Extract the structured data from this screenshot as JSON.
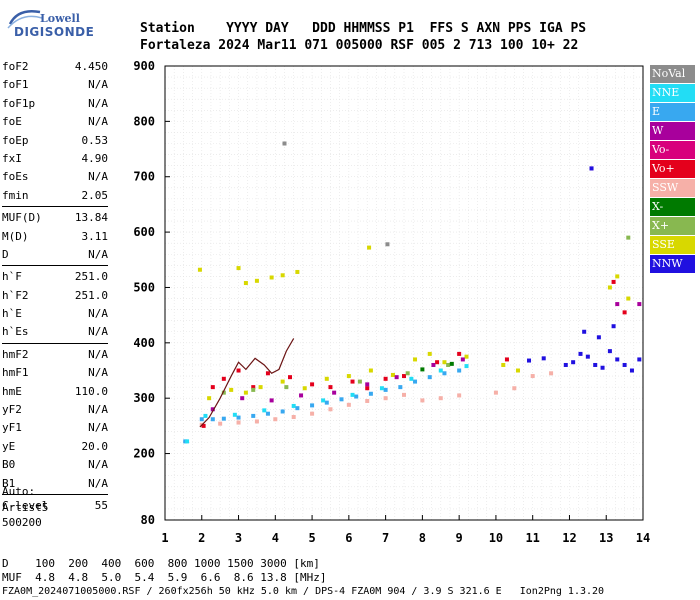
{
  "logo": {
    "line1": "Lowell",
    "line2": "DIGISONDE"
  },
  "header": {
    "line1": "Station    YYYY DAY   DDD HHMMSS P1  FFS S AXN PPS IGA PS",
    "line2": "Fortaleza 2024 Mar11 071 005000 RSF 005 2 713 100 10+ 22"
  },
  "params": [
    [
      {
        "k": "foF2",
        "v": "4.450"
      },
      {
        "k": "foF1",
        "v": "N/A"
      },
      {
        "k": "foF1p",
        "v": "N/A"
      },
      {
        "k": "foE",
        "v": "N/A"
      },
      {
        "k": "foEp",
        "v": "0.53"
      },
      {
        "k": "fxI",
        "v": "4.90"
      },
      {
        "k": "foEs",
        "v": "N/A"
      },
      {
        "k": "fmin",
        "v": "2.05"
      }
    ],
    [
      {
        "k": "MUF(D)",
        "v": "13.84"
      },
      {
        "k": "M(D)",
        "v": "3.11"
      },
      {
        "k": "D",
        "v": "N/A"
      }
    ],
    [
      {
        "k": "h`F",
        "v": "251.0"
      },
      {
        "k": "h`F2",
        "v": "251.0"
      },
      {
        "k": "h`E",
        "v": "N/A"
      },
      {
        "k": "h`Es",
        "v": "N/A"
      }
    ],
    [
      {
        "k": "hmF2",
        "v": "N/A"
      },
      {
        "k": "hmF1",
        "v": "N/A"
      },
      {
        "k": "hmE",
        "v": "110.0"
      },
      {
        "k": "yF2",
        "v": "N/A"
      },
      {
        "k": "yF1",
        "v": "N/A"
      },
      {
        "k": "yE",
        "v": "20.0"
      },
      {
        "k": "B0",
        "v": "N/A"
      },
      {
        "k": "B1",
        "v": "N/A"
      }
    ],
    [
      {
        "k": "C-level",
        "v": "55"
      }
    ]
  ],
  "auto": {
    "l1": "Auto:",
    "l2": "Artist5",
    "l3": "500200"
  },
  "footer": {
    "l1": "D    100  200  400  600  800 1000 1500 3000 [km]",
    "l2": "MUF  4.8  4.8  5.0  5.4  5.9  6.6  8.6 13.8 [MHz]",
    "l3": "FZA0M_2024071005000.RSF / 260fx256h 50 kHz 5.0 km / DPS-4 FZA0M 904 / 3.9 S 321.6 E   Ion2Png 1.3.20"
  },
  "legend": [
    {
      "label": "NoVal",
      "bg": "#8c8c8c",
      "fg": "#ffffff"
    },
    {
      "label": "NNE",
      "bg": "#22ddf5",
      "fg": "#ffffff"
    },
    {
      "label": "E",
      "bg": "#38a8f0",
      "fg": "#ffffff"
    },
    {
      "label": "W",
      "bg": "#a8009c",
      "fg": "#ffffff"
    },
    {
      "label": "Vo-",
      "bg": "#d8007c",
      "fg": "#ffffff"
    },
    {
      "label": "Vo+",
      "bg": "#e4001c",
      "fg": "#ffffff"
    },
    {
      "label": "SSW",
      "bg": "#f6b0a8",
      "fg": "#ffffff"
    },
    {
      "label": "X-",
      "bg": "#007a00",
      "fg": "#ffffff"
    },
    {
      "label": "X+",
      "bg": "#88b850",
      "fg": "#ffffff"
    },
    {
      "label": "SSE",
      "bg": "#d8d800",
      "fg": "#ffffff"
    },
    {
      "label": "NNW",
      "bg": "#2010e0",
      "fg": "#ffffff"
    }
  ],
  "chart_data": {
    "type": "scatter",
    "x_ticks": [
      "1",
      "2",
      "3",
      "4",
      "5",
      "6",
      "7",
      "8",
      "9",
      "10",
      "11",
      "12",
      "13",
      "14"
    ],
    "y_ticks": [
      "80",
      "200",
      "300",
      "400",
      "500",
      "600",
      "700",
      "800",
      "900"
    ],
    "xlim": [
      1,
      14
    ],
    "ylim": [
      80,
      900
    ],
    "grid": true,
    "legend_position": "right",
    "series": [
      {
        "name": "E",
        "color": "#38a8f0",
        "points": [
          [
            2.0,
            262
          ],
          [
            2.3,
            262
          ],
          [
            2.6,
            263
          ],
          [
            3.0,
            265
          ],
          [
            3.4,
            268
          ],
          [
            3.8,
            272
          ],
          [
            4.2,
            276
          ],
          [
            4.6,
            282
          ],
          [
            5.0,
            287
          ],
          [
            5.4,
            292
          ],
          [
            5.8,
            298
          ],
          [
            6.2,
            303
          ],
          [
            6.6,
            308
          ],
          [
            7.0,
            315
          ],
          [
            7.4,
            320
          ],
          [
            7.8,
            330
          ],
          [
            8.2,
            338
          ],
          [
            8.6,
            345
          ],
          [
            9.0,
            350
          ],
          [
            1.55,
            222
          ]
        ]
      },
      {
        "name": "NNE",
        "color": "#22ddf5",
        "points": [
          [
            2.1,
            268
          ],
          [
            2.9,
            270
          ],
          [
            3.7,
            278
          ],
          [
            4.5,
            286
          ],
          [
            5.3,
            296
          ],
          [
            6.1,
            306
          ],
          [
            6.9,
            318
          ],
          [
            7.7,
            335
          ],
          [
            8.5,
            350
          ],
          [
            9.2,
            358
          ],
          [
            1.6,
            222
          ]
        ]
      },
      {
        "name": "SSW",
        "color": "#f6b0a8",
        "points": [
          [
            2.0,
            252
          ],
          [
            2.5,
            254
          ],
          [
            3.0,
            256
          ],
          [
            3.5,
            258
          ],
          [
            4.0,
            262
          ],
          [
            4.5,
            266
          ],
          [
            5.0,
            272
          ],
          [
            5.5,
            280
          ],
          [
            6.0,
            288
          ],
          [
            6.5,
            295
          ],
          [
            7.0,
            300
          ],
          [
            7.5,
            306
          ],
          [
            8.0,
            296
          ],
          [
            8.5,
            300
          ],
          [
            9.0,
            305
          ],
          [
            10.0,
            310
          ],
          [
            10.5,
            318
          ],
          [
            11.0,
            340
          ],
          [
            11.5,
            345
          ]
        ]
      },
      {
        "name": "SSE",
        "color": "#d8d800",
        "points": [
          [
            2.2,
            300
          ],
          [
            2.8,
            315
          ],
          [
            3.2,
            310
          ],
          [
            3.6,
            320
          ],
          [
            4.2,
            330
          ],
          [
            4.8,
            318
          ],
          [
            5.4,
            335
          ],
          [
            6.0,
            340
          ],
          [
            6.6,
            350
          ],
          [
            7.2,
            342
          ],
          [
            7.8,
            370
          ],
          [
            8.2,
            380
          ],
          [
            8.6,
            365
          ],
          [
            9.2,
            375
          ],
          [
            10.2,
            360
          ],
          [
            10.6,
            350
          ],
          [
            13.1,
            500
          ],
          [
            13.3,
            520
          ],
          [
            13.6,
            480
          ],
          [
            3.2,
            508
          ],
          [
            3.5,
            512
          ],
          [
            3.9,
            518
          ],
          [
            4.2,
            522
          ],
          [
            4.6,
            528
          ],
          [
            3.0,
            535
          ],
          [
            1.95,
            532
          ],
          [
            6.55,
            572
          ]
        ]
      },
      {
        "name": "Vo+",
        "color": "#e4001c",
        "points": [
          [
            2.05,
            250
          ],
          [
            2.3,
            320
          ],
          [
            2.6,
            335
          ],
          [
            3.0,
            350
          ],
          [
            3.4,
            320
          ],
          [
            3.8,
            345
          ],
          [
            4.4,
            338
          ],
          [
            5.0,
            325
          ],
          [
            5.5,
            320
          ],
          [
            6.1,
            330
          ],
          [
            6.5,
            318
          ],
          [
            7.0,
            335
          ],
          [
            7.5,
            340
          ],
          [
            8.4,
            365
          ],
          [
            9.0,
            380
          ],
          [
            10.3,
            370
          ],
          [
            13.2,
            510
          ],
          [
            13.5,
            455
          ]
        ]
      },
      {
        "name": "W",
        "color": "#a8009c",
        "points": [
          [
            2.3,
            280
          ],
          [
            3.1,
            300
          ],
          [
            3.9,
            296
          ],
          [
            4.7,
            305
          ],
          [
            5.6,
            310
          ],
          [
            6.5,
            325
          ],
          [
            7.3,
            338
          ],
          [
            8.3,
            360
          ],
          [
            9.1,
            370
          ],
          [
            13.3,
            470
          ],
          [
            13.9,
            470
          ],
          [
            12.6,
            715
          ]
        ]
      },
      {
        "name": "X+",
        "color": "#88b850",
        "points": [
          [
            2.6,
            310
          ],
          [
            3.4,
            315
          ],
          [
            4.3,
            320
          ],
          [
            6.3,
            330
          ],
          [
            7.6,
            345
          ],
          [
            8.7,
            360
          ],
          [
            13.6,
            590
          ]
        ]
      },
      {
        "name": "NNW",
        "color": "#2010e0",
        "points": [
          [
            10.9,
            368
          ],
          [
            11.3,
            372
          ],
          [
            11.9,
            360
          ],
          [
            12.1,
            365
          ],
          [
            12.3,
            380
          ],
          [
            12.5,
            375
          ],
          [
            12.7,
            360
          ],
          [
            12.9,
            355
          ],
          [
            13.1,
            385
          ],
          [
            13.3,
            370
          ],
          [
            13.5,
            360
          ],
          [
            13.7,
            350
          ],
          [
            13.9,
            370
          ],
          [
            12.4,
            420
          ],
          [
            12.8,
            410
          ],
          [
            13.2,
            430
          ],
          [
            12.6,
            715
          ]
        ]
      },
      {
        "name": "X-",
        "color": "#007a00",
        "points": [
          [
            8.0,
            352
          ],
          [
            8.8,
            362
          ]
        ]
      },
      {
        "name": "NoVal",
        "color": "#8c8c8c",
        "points": [
          [
            4.25,
            760
          ],
          [
            7.05,
            578
          ]
        ]
      }
    ],
    "trace": {
      "color": "#6b1414",
      "points": [
        [
          1.95,
          248
        ],
        [
          2.2,
          265
        ],
        [
          2.5,
          300
        ],
        [
          2.8,
          340
        ],
        [
          3.0,
          365
        ],
        [
          3.2,
          352
        ],
        [
          3.45,
          372
        ],
        [
          3.7,
          360
        ],
        [
          3.9,
          345
        ],
        [
          4.1,
          352
        ],
        [
          4.3,
          385
        ],
        [
          4.5,
          408
        ]
      ]
    }
  }
}
